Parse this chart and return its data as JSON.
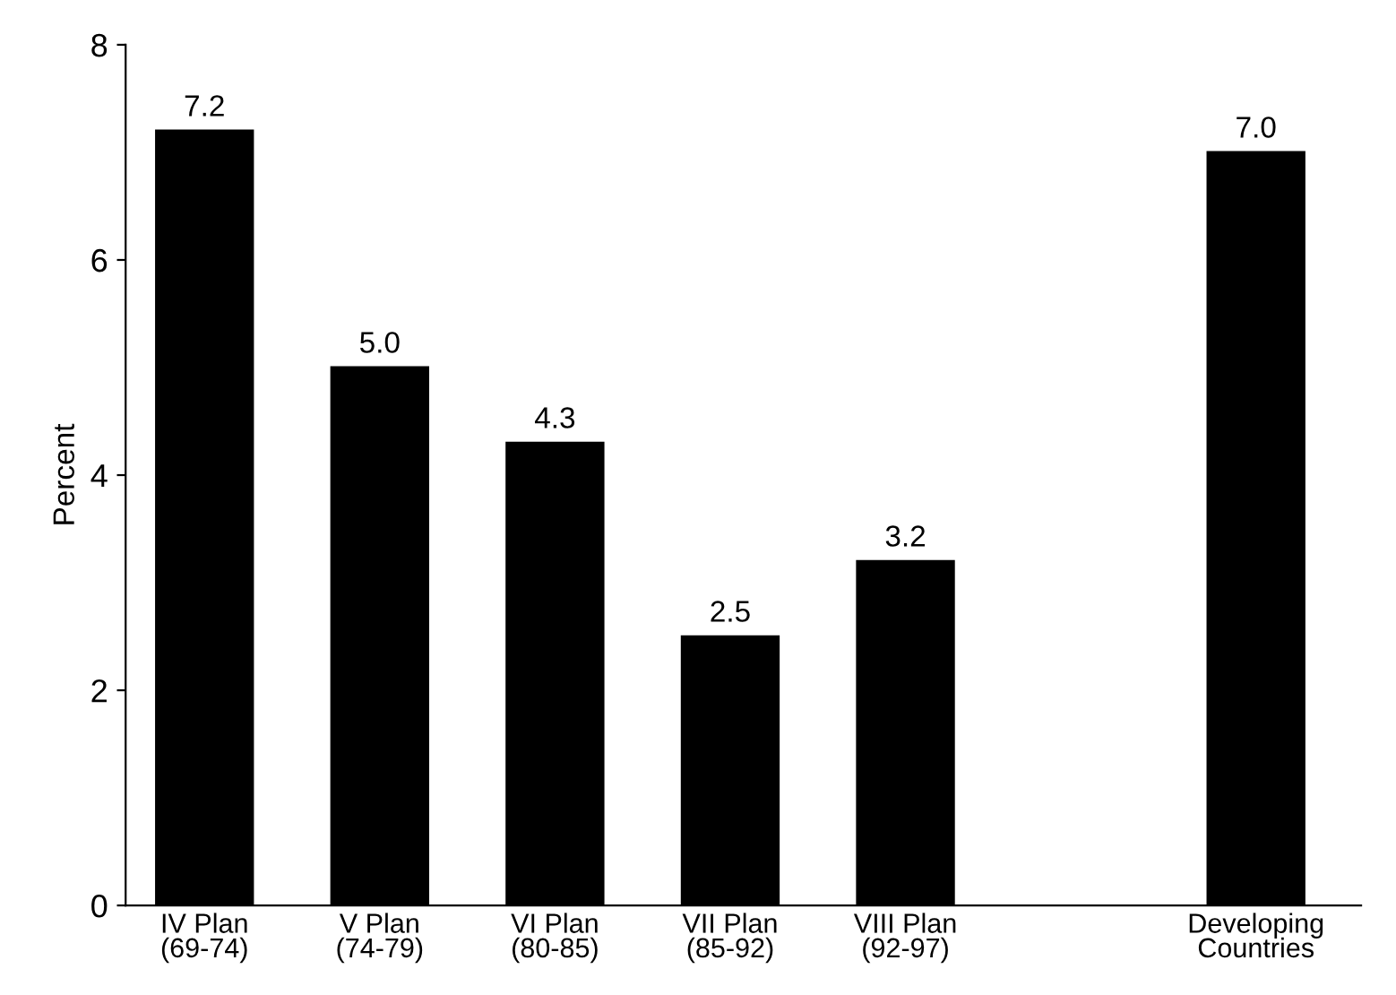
{
  "chart_data": {
    "type": "bar",
    "ylabel": "Percent",
    "categories": [
      "IV Plan\n(69-74)",
      "V Plan\n(74-79)",
      "VI Plan\n(80-85)",
      "VII Plan\n(85-92)",
      "VIII Plan\n(92-97)",
      null,
      "Developing\nCountries"
    ],
    "values": [
      7.2,
      5.0,
      4.3,
      2.5,
      3.2,
      null,
      7.0
    ],
    "color": "#000000",
    "value_labels": [
      "7.2",
      "5.0",
      "4.3",
      "2.5",
      "3.2",
      null,
      "7.0"
    ],
    "ylim": [
      0,
      8
    ],
    "yticks": [
      0,
      2,
      4,
      6,
      8
    ],
    "grid": false
  }
}
